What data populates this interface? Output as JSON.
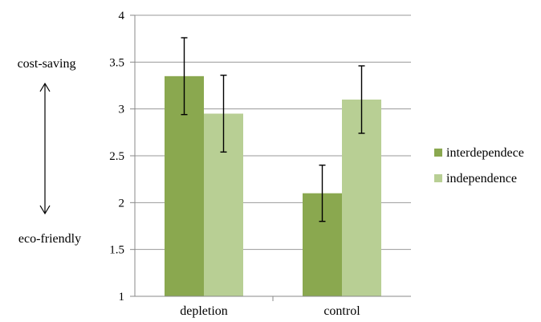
{
  "chart_data": {
    "type": "bar",
    "title": "",
    "xlabel": "",
    "ylabel": "",
    "categories": [
      "depletion",
      "control"
    ],
    "series": [
      {
        "name": "interdependece",
        "values": [
          3.35,
          2.1
        ],
        "errors": [
          0.41,
          0.3
        ],
        "color": "#8aa84f"
      },
      {
        "name": "independence",
        "values": [
          2.95,
          3.1
        ],
        "errors": [
          0.41,
          0.36
        ],
        "color": "#b8cf94"
      }
    ],
    "ylim": [
      1,
      4
    ],
    "yticks": [
      "1",
      "1.5",
      "2",
      "2.5",
      "3",
      "3.5",
      "4"
    ],
    "grid": "horizontal",
    "legend_position": "right",
    "annotations": {
      "top": "cost-saving",
      "bottom": "eco-friendly"
    },
    "colors": {
      "grid": "#9a9a9a",
      "axis": "#888888",
      "error_bar": "#000000"
    }
  }
}
